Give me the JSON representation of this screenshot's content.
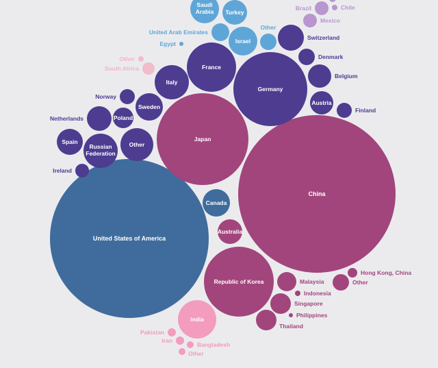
{
  "chart_data": {
    "type": "bubble",
    "groups": {
      "americas": "#3f6c9c",
      "east_asia": "#a2457c",
      "europe": "#4d3c90",
      "middle_east": "#5fa6d8",
      "africa": "#f2bccb",
      "south_asia": "#f39cbe",
      "latin_america": "#b896cf"
    },
    "bubbles": [
      {
        "label": "United States of America",
        "group": "americas",
        "value": 13456
      },
      {
        "label": "China",
        "group": "east_asia",
        "value": 13225
      },
      {
        "label": "Japan",
        "group": "east_asia",
        "value": 4489
      },
      {
        "label": "Germany",
        "group": "europe",
        "value": 2916
      },
      {
        "label": "Republic of Korea",
        "group": "east_asia",
        "value": 2601
      },
      {
        "label": "France",
        "group": "europe",
        "value": 1296
      },
      {
        "label": "Italy",
        "group": "europe",
        "value": 625
      },
      {
        "label": "Sweden",
        "group": "europe",
        "value": 400
      },
      {
        "label": "Other",
        "group": "europe",
        "value": 576
      },
      {
        "label": "Russian Federation",
        "group": "europe",
        "value": 625
      },
      {
        "label": "Spain",
        "group": "europe",
        "value": 361
      },
      {
        "label": "Netherlands",
        "group": "europe",
        "value": 324
      },
      {
        "label": "Poland",
        "group": "europe",
        "value": 225
      },
      {
        "label": "Norway",
        "group": "europe",
        "value": 121
      },
      {
        "label": "Ireland",
        "group": "europe",
        "value": 100
      },
      {
        "label": "Switzerland",
        "group": "europe",
        "value": 361
      },
      {
        "label": "Denmark",
        "group": "europe",
        "value": 144
      },
      {
        "label": "Belgium",
        "group": "europe",
        "value": 289
      },
      {
        "label": "Austria",
        "group": "europe",
        "value": 289
      },
      {
        "label": "Finland",
        "group": "europe",
        "value": 121
      },
      {
        "label": "Canada",
        "group": "americas",
        "value": 400
      },
      {
        "label": "Australia",
        "group": "east_asia",
        "value": 324
      },
      {
        "label": "India",
        "group": "south_asia",
        "value": 784
      },
      {
        "label": "Pakistan",
        "group": "south_asia",
        "value": 36
      },
      {
        "label": "Iran",
        "group": "south_asia",
        "value": 36
      },
      {
        "label": "Bangladesh",
        "group": "south_asia",
        "value": 25
      },
      {
        "label": "Other",
        "group": "south_asia",
        "value": 25
      },
      {
        "label": "Malaysia",
        "group": "east_asia",
        "value": 196
      },
      {
        "label": "Indonesia",
        "group": "east_asia",
        "value": 16
      },
      {
        "label": "Singapore",
        "group": "east_asia",
        "value": 225
      },
      {
        "label": "Philippines",
        "group": "east_asia",
        "value": 9
      },
      {
        "label": "Thailand",
        "group": "east_asia",
        "value": 225
      },
      {
        "label": "Hong Kong, China",
        "group": "east_asia",
        "value": 49
      },
      {
        "label": "Other",
        "group": "east_asia",
        "value": 144
      },
      {
        "label": "Saudi Arabia",
        "group": "middle_east",
        "value": 441
      },
      {
        "label": "Turkey",
        "group": "middle_east",
        "value": 324
      },
      {
        "label": "United Arab Emirates",
        "group": "middle_east",
        "value": 169
      },
      {
        "label": "Israel",
        "group": "middle_east",
        "value": 441
      },
      {
        "label": "Other",
        "group": "middle_east",
        "value": 144
      },
      {
        "label": "Egypt",
        "group": "middle_east",
        "value": 9
      },
      {
        "label": "South Africa",
        "group": "africa",
        "value": 81
      },
      {
        "label": "Other",
        "group": "africa",
        "value": 16
      },
      {
        "label": "Brazil",
        "group": "latin_america",
        "value": 100
      },
      {
        "label": "Chile",
        "group": "latin_america",
        "value": 16
      },
      {
        "label": "Mexico",
        "group": "latin_america",
        "value": 100
      },
      {
        "label": "",
        "group": "latin_america",
        "value": 25
      }
    ]
  }
}
